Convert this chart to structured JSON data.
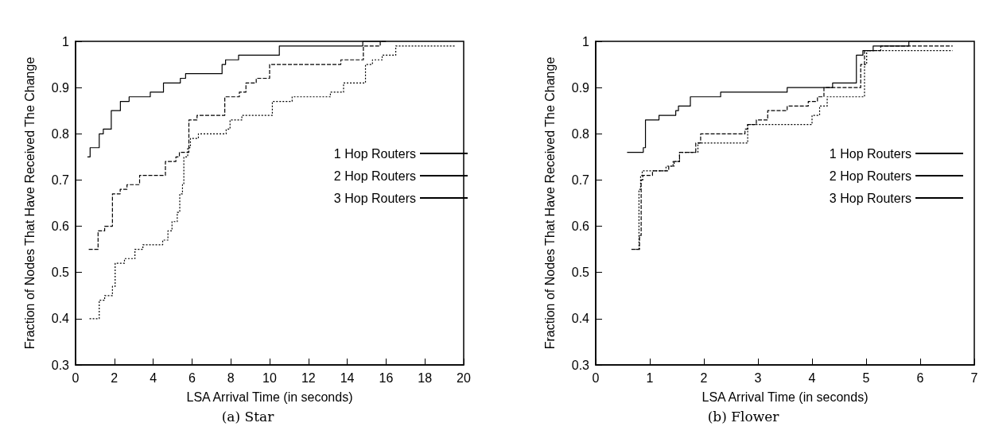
{
  "chart_data": [
    {
      "type": "step",
      "title": "(a) Star",
      "xlabel": "LSA Arrival Time (in seconds)",
      "ylabel": "Fraction of Nodes That Have Received The Change",
      "xlim": [
        0,
        20
      ],
      "xticks": [
        0,
        2,
        4,
        6,
        8,
        10,
        12,
        14,
        16,
        18,
        20
      ],
      "ylim": [
        0.3,
        1
      ],
      "yticks": [
        0.3,
        0.4,
        0.5,
        0.6,
        0.7,
        0.8,
        0.9,
        1
      ],
      "grid": false,
      "legend": "right",
      "marker": "none",
      "series": [
        {
          "name": "1 Hop Routers",
          "color": "#000000",
          "line_style": "solid",
          "x": [
            0.61,
            0.75,
            1.22,
            1.43,
            1.84,
            2.31,
            2.76,
            3.85,
            4.53,
            5.4,
            5.67,
            7.55,
            7.73,
            8.4,
            10.5,
            14.8,
            16
          ],
          "values": [
            0.75,
            0.77,
            0.8,
            0.81,
            0.85,
            0.87,
            0.88,
            0.89,
            0.91,
            0.92,
            0.93,
            0.95,
            0.96,
            0.97,
            0.99,
            1,
            1
          ]
        },
        {
          "name": "2 Hop Routers",
          "color": "#000000",
          "line_style": "dashed",
          "x": [
            0.68,
            1.16,
            1.5,
            1.9,
            2.3,
            2.65,
            3.3,
            4.63,
            5.17,
            5.35,
            5.84,
            6.26,
            7.69,
            8.44,
            8.78,
            9.31,
            10.0,
            13.67,
            14.83,
            15.7,
            16
          ],
          "values": [
            0.55,
            0.59,
            0.6,
            0.67,
            0.68,
            0.69,
            0.71,
            0.74,
            0.75,
            0.76,
            0.83,
            0.84,
            0.88,
            0.89,
            0.91,
            0.92,
            0.95,
            0.96,
            0.99,
            1,
            1
          ]
        },
        {
          "name": "3 Hop Routers",
          "color": "#000000",
          "line_style": "dotted",
          "x": [
            0.72,
            1.22,
            1.5,
            1.9,
            2.04,
            2.52,
            3.06,
            3.47,
            4.49,
            4.76,
            4.97,
            5.24,
            5.37,
            5.51,
            5.58,
            5.78,
            5.92,
            6.33,
            7.76,
            7.96,
            8.57,
            10.0,
            10.14,
            11.16,
            13.13,
            13.81,
            14.94,
            15.3,
            15.8,
            16.5,
            19.6
          ],
          "values": [
            0.4,
            0.44,
            0.45,
            0.47,
            0.52,
            0.53,
            0.55,
            0.56,
            0.57,
            0.59,
            0.61,
            0.63,
            0.67,
            0.69,
            0.75,
            0.77,
            0.79,
            0.8,
            0.81,
            0.83,
            0.84,
            0.84,
            0.87,
            0.88,
            0.89,
            0.91,
            0.95,
            0.96,
            0.97,
            0.99,
            0.99
          ]
        }
      ]
    },
    {
      "type": "step",
      "title": "(b) Flower",
      "xlabel": "LSA Arrival Time (in seconds)",
      "ylabel": "Fraction of Nodes That Have Received The Change",
      "xlim": [
        0,
        7
      ],
      "xticks": [
        0,
        1,
        2,
        3,
        4,
        5,
        6,
        7
      ],
      "ylim": [
        0.3,
        1
      ],
      "yticks": [
        0.3,
        0.4,
        0.5,
        0.6,
        0.7,
        0.8,
        0.9,
        1
      ],
      "grid": false,
      "legend": "right",
      "marker": "none",
      "series": [
        {
          "name": "1 Hop Routers",
          "color": "#000000",
          "line_style": "solid",
          "x": [
            0.58,
            0.88,
            0.92,
            1.17,
            1.48,
            1.53,
            1.75,
            2.31,
            3.54,
            4.38,
            4.82,
            4.94,
            5.13,
            5.79,
            6.0
          ],
          "values": [
            0.76,
            0.77,
            0.83,
            0.84,
            0.85,
            0.86,
            0.88,
            0.89,
            0.9,
            0.91,
            0.97,
            0.98,
            0.99,
            1,
            1
          ]
        },
        {
          "name": "2 Hop Routers",
          "color": "#000000",
          "line_style": "dashed",
          "x": [
            0.66,
            0.81,
            0.84,
            0.87,
            1.05,
            1.35,
            1.45,
            1.55,
            1.85,
            1.94,
            2.76,
            2.81,
            2.97,
            3.18,
            3.54,
            3.93,
            4.1,
            4.22,
            4.9,
            4.97,
            5.27,
            6.6
          ],
          "values": [
            0.55,
            0.58,
            0.7,
            0.71,
            0.72,
            0.73,
            0.74,
            0.76,
            0.78,
            0.8,
            0.81,
            0.82,
            0.83,
            0.85,
            0.86,
            0.87,
            0.88,
            0.9,
            0.95,
            0.98,
            0.99,
            0.99
          ]
        },
        {
          "name": "3 Hop Routers",
          "color": "#000000",
          "line_style": "dotted",
          "x": [
            0.74,
            0.8,
            0.83,
            0.86,
            1.3,
            1.43,
            1.55,
            1.89,
            2.81,
            4.0,
            4.14,
            4.28,
            4.97,
            5.01,
            6.6
          ],
          "values": [
            0.55,
            0.68,
            0.71,
            0.72,
            0.73,
            0.74,
            0.76,
            0.78,
            0.82,
            0.84,
            0.86,
            0.88,
            0.95,
            0.98,
            0.98
          ]
        }
      ]
    }
  ]
}
